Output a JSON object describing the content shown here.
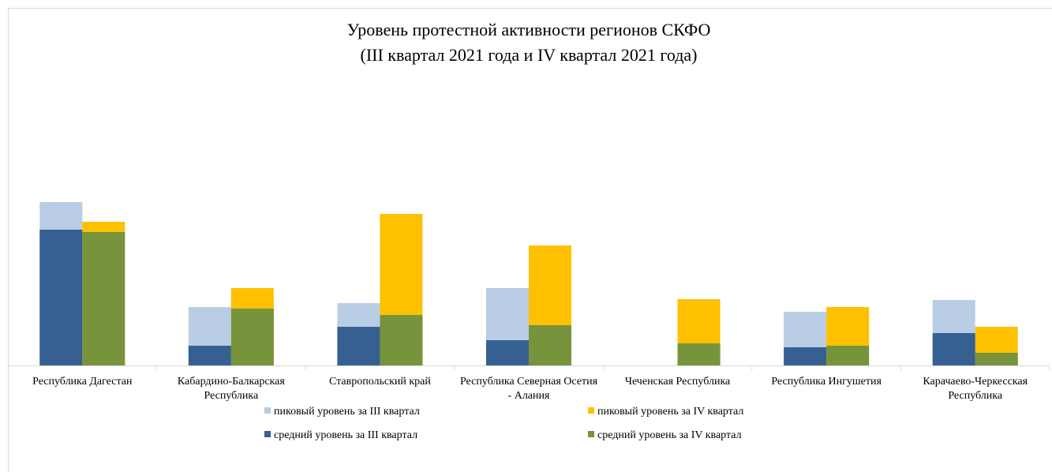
{
  "chart_data": {
    "type": "bar",
    "title": "Уровень протестной активности регионов СКФО",
    "subtitle": "(III квартал 2021 года и IV квартал 2021 года)",
    "categories": [
      "Республика Дагестан",
      "Кабардино-Балкарская Республика",
      "Ставропольский край",
      "Республика Северная Осетия - Алания",
      "Чеченская Республика",
      "Республика Ингушетия",
      "Карачаево-Черкесская Республика"
    ],
    "series": [
      {
        "name": "пиковый уровень за III квартал",
        "color": "#b9cde5",
        "values": [
          207,
          74,
          79,
          98,
          0,
          68,
          83
        ]
      },
      {
        "name": "пиковый уровень за IV квартал",
        "color": "#ffc000",
        "values": [
          182,
          98,
          192,
          152,
          84,
          74,
          49
        ]
      },
      {
        "name": "средний уровень за III квартал",
        "color": "#376092",
        "values": [
          172,
          25,
          49,
          32,
          0,
          23,
          41
        ]
      },
      {
        "name": "средний уровень за IV квартал",
        "color": "#77933c",
        "values": [
          169,
          72,
          64,
          51,
          28,
          25,
          16
        ]
      }
    ],
    "ylim": [
      0,
      250
    ]
  }
}
